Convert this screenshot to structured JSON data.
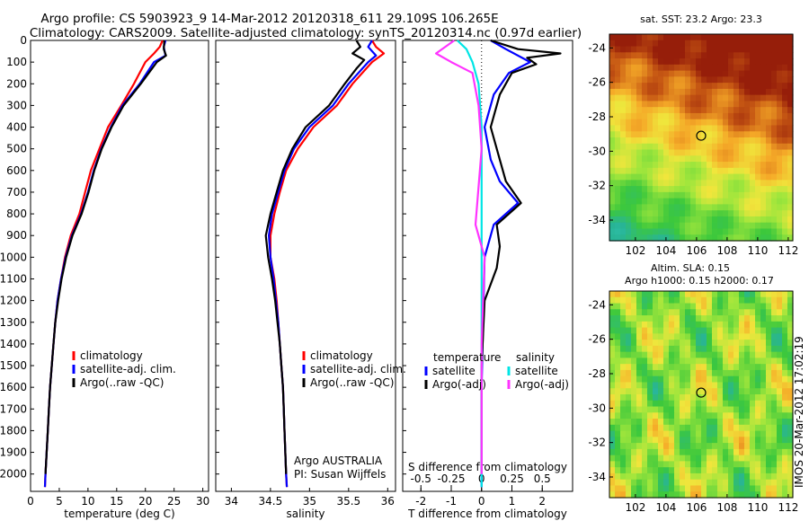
{
  "header": {
    "line1": "Argo profile: CS 5903923_9 14-Mar-2012 20120318_611 29.109S 106.265E",
    "line2": "Climatology: CARS2009. Satellite-adjusted climatology: synTS_20120314.nc (0.97d earlier)"
  },
  "colors": {
    "climatology": "#ff0000",
    "satellite": "#0000ff",
    "argo": "#000000",
    "sal_satellite": "#00e5e5",
    "sal_argo": "#ff33ff"
  },
  "side_text": "IMOS 20-Mar-2012 17:02:19",
  "chart_data": [
    {
      "type": "line",
      "xlabel": "temperature (deg C)",
      "xlim": [
        0,
        31
      ],
      "ylim": [
        2080,
        0
      ],
      "xticks": [
        0,
        5,
        10,
        15,
        20,
        25,
        30
      ],
      "yticks": [
        0,
        100,
        200,
        300,
        400,
        500,
        600,
        700,
        800,
        900,
        1000,
        1100,
        1200,
        1300,
        1400,
        1500,
        1600,
        1700,
        1800,
        1900,
        2000
      ],
      "legend": [
        "climatology",
        "satellite-adj. clim.",
        "Argo(..raw -QC)"
      ],
      "series": [
        {
          "name": "climatology",
          "color": "#ff0000",
          "points": [
            [
              23,
              0
            ],
            [
              22.5,
              30
            ],
            [
              21.5,
              60
            ],
            [
              20,
              100
            ],
            [
              18,
              200
            ],
            [
              15.8,
              300
            ],
            [
              13.5,
              400
            ],
            [
              12,
              500
            ],
            [
              10.5,
              600
            ],
            [
              9.5,
              700
            ],
            [
              8.5,
              800
            ],
            [
              7,
              900
            ],
            [
              6,
              1000
            ],
            [
              5.3,
              1100
            ],
            [
              4.7,
              1200
            ],
            [
              4.3,
              1300
            ],
            [
              4,
              1400
            ],
            [
              3.7,
              1500
            ],
            [
              3.4,
              1600
            ],
            [
              3.2,
              1700
            ],
            [
              3,
              1800
            ],
            [
              2.8,
              1900
            ],
            [
              2.6,
              2000
            ],
            [
              2.5,
              2060
            ]
          ]
        },
        {
          "name": "satellite-adj. clim.",
          "color": "#0000ff",
          "points": [
            [
              23.5,
              0
            ],
            [
              23.2,
              30
            ],
            [
              23.5,
              70
            ],
            [
              21.5,
              100
            ],
            [
              19,
              200
            ],
            [
              16,
              300
            ],
            [
              14,
              400
            ],
            [
              12.3,
              500
            ],
            [
              11,
              600
            ],
            [
              10,
              700
            ],
            [
              8.8,
              800
            ],
            [
              7.2,
              900
            ],
            [
              6.1,
              1000
            ],
            [
              5.3,
              1100
            ],
            [
              4.7,
              1200
            ],
            [
              4.3,
              1300
            ],
            [
              4,
              1400
            ],
            [
              3.7,
              1500
            ],
            [
              3.4,
              1600
            ],
            [
              3.2,
              1700
            ],
            [
              3,
              1800
            ],
            [
              2.8,
              1900
            ],
            [
              2.6,
              2000
            ],
            [
              2.5,
              2060
            ]
          ]
        },
        {
          "name": "Argo(..raw -QC)",
          "color": "#000000",
          "points": [
            [
              23.3,
              0
            ],
            [
              23.2,
              40
            ],
            [
              23.6,
              70
            ],
            [
              22,
              100
            ],
            [
              19.2,
              200
            ],
            [
              16.2,
              300
            ],
            [
              14.1,
              400
            ],
            [
              12.4,
              500
            ],
            [
              11.1,
              600
            ],
            [
              10.1,
              700
            ],
            [
              8.9,
              800
            ],
            [
              7.3,
              900
            ],
            [
              6.2,
              1000
            ],
            [
              5.4,
              1100
            ],
            [
              4.8,
              1200
            ],
            [
              4.3,
              1300
            ],
            [
              4,
              1400
            ],
            [
              3.7,
              1500
            ],
            [
              3.4,
              1600
            ],
            [
              3.2,
              1700
            ],
            [
              3,
              1800
            ],
            [
              2.8,
              1900
            ],
            [
              2.6,
              2000
            ]
          ]
        }
      ]
    },
    {
      "type": "line",
      "xlabel": "salinity",
      "xlim": [
        33.8,
        36.1
      ],
      "ylim": [
        2080,
        0
      ],
      "xticks": [
        34,
        34.5,
        35,
        35.5,
        36
      ],
      "legend": [
        "climatology",
        "satellite-adj. clim.",
        "Argo(..raw -QC)"
      ],
      "annotation": [
        "Argo AUSTRALIA",
        "PI: Susan Wijffels"
      ],
      "series": [
        {
          "name": "climatology",
          "color": "#ff0000",
          "points": [
            [
              35.8,
              0
            ],
            [
              35.85,
              30
            ],
            [
              35.95,
              60
            ],
            [
              35.8,
              100
            ],
            [
              35.55,
              200
            ],
            [
              35.35,
              300
            ],
            [
              35.05,
              400
            ],
            [
              34.85,
              500
            ],
            [
              34.7,
              600
            ],
            [
              34.62,
              700
            ],
            [
              34.55,
              800
            ],
            [
              34.5,
              900
            ],
            [
              34.5,
              1000
            ],
            [
              34.55,
              1100
            ],
            [
              34.58,
              1200
            ],
            [
              34.6,
              1300
            ],
            [
              34.62,
              1400
            ],
            [
              34.64,
              1500
            ],
            [
              34.66,
              1600
            ],
            [
              34.67,
              1700
            ],
            [
              34.68,
              1800
            ],
            [
              34.69,
              1900
            ],
            [
              34.7,
              2000
            ],
            [
              34.71,
              2060
            ]
          ]
        },
        {
          "name": "satellite-adj. clim.",
          "color": "#0000ff",
          "points": [
            [
              35.8,
              0
            ],
            [
              35.75,
              30
            ],
            [
              35.85,
              70
            ],
            [
              35.75,
              100
            ],
            [
              35.5,
              200
            ],
            [
              35.3,
              300
            ],
            [
              35,
              400
            ],
            [
              34.8,
              500
            ],
            [
              34.68,
              600
            ],
            [
              34.6,
              700
            ],
            [
              34.52,
              800
            ],
            [
              34.48,
              900
            ],
            [
              34.5,
              1000
            ],
            [
              34.54,
              1100
            ],
            [
              34.57,
              1200
            ],
            [
              34.6,
              1300
            ],
            [
              34.62,
              1400
            ],
            [
              34.64,
              1500
            ],
            [
              34.66,
              1600
            ],
            [
              34.67,
              1700
            ],
            [
              34.68,
              1800
            ],
            [
              34.69,
              1900
            ],
            [
              34.7,
              2000
            ],
            [
              34.71,
              2060
            ]
          ]
        },
        {
          "name": "Argo(..raw -QC)",
          "color": "#000000",
          "points": [
            [
              35.6,
              0
            ],
            [
              35.65,
              30
            ],
            [
              35.55,
              60
            ],
            [
              35.7,
              90
            ],
            [
              35.6,
              130
            ],
            [
              35.45,
              200
            ],
            [
              35.25,
              300
            ],
            [
              34.95,
              400
            ],
            [
              34.78,
              500
            ],
            [
              34.66,
              600
            ],
            [
              34.58,
              700
            ],
            [
              34.5,
              800
            ],
            [
              34.44,
              900
            ],
            [
              34.47,
              1000
            ],
            [
              34.52,
              1100
            ],
            [
              34.56,
              1200
            ],
            [
              34.59,
              1300
            ],
            [
              34.62,
              1400
            ],
            [
              34.64,
              1500
            ],
            [
              34.66,
              1600
            ],
            [
              34.67,
              1700
            ],
            [
              34.68,
              1800
            ],
            [
              34.69,
              1900
            ],
            [
              34.7,
              2000
            ]
          ]
        }
      ]
    },
    {
      "type": "line",
      "xlabel": "T difference from climatology",
      "xlabel2": "S difference from climatology",
      "xlim": [
        -2.6,
        3
      ],
      "ylim": [
        2080,
        0
      ],
      "xticks": [
        -2,
        -1,
        0,
        1,
        2
      ],
      "xticks2": [
        -0.5,
        -0.25,
        0,
        0.25,
        0.5
      ],
      "legend_groups": [
        {
          "title": "temperature",
          "items": [
            "satellite",
            "Argo(-adj)"
          ]
        },
        {
          "title": "salinity",
          "items": [
            "satellite",
            "Argo(-adj)"
          ]
        }
      ],
      "series": [
        {
          "name": "temperature satellite",
          "color": "#0000ff",
          "points": [
            [
              0.3,
              0
            ],
            [
              0.8,
              40
            ],
            [
              1.6,
              100
            ],
            [
              0.9,
              150
            ],
            [
              0.4,
              250
            ],
            [
              0.1,
              400
            ],
            [
              0.3,
              550
            ],
            [
              0.6,
              650
            ],
            [
              1.2,
              750
            ],
            [
              0.4,
              850
            ],
            [
              0.1,
              1000
            ],
            [
              0.05,
              1300
            ],
            [
              0,
              1600
            ],
            [
              0,
              2060
            ]
          ]
        },
        {
          "name": "temperature Argo(-adj)",
          "color": "#000000",
          "points": [
            [
              0.3,
              0
            ],
            [
              1.2,
              40
            ],
            [
              2.6,
              60
            ],
            [
              1.5,
              80
            ],
            [
              1.8,
              110
            ],
            [
              1.0,
              150
            ],
            [
              0.6,
              250
            ],
            [
              0.3,
              400
            ],
            [
              0.6,
              550
            ],
            [
              0.8,
              650
            ],
            [
              1.3,
              750
            ],
            [
              0.5,
              850
            ],
            [
              0.6,
              950
            ],
            [
              0.5,
              1050
            ],
            [
              0.1,
              1200
            ],
            [
              0,
              1500
            ],
            [
              0,
              2000
            ]
          ]
        },
        {
          "name": "salinity satellite",
          "color": "#00e5e5",
          "points": [
            [
              -0.8,
              0
            ],
            [
              -0.5,
              40
            ],
            [
              -0.3,
              100
            ],
            [
              -0.1,
              200
            ],
            [
              0,
              400
            ],
            [
              0,
              800
            ],
            [
              0,
              1200
            ],
            [
              0,
              1600
            ],
            [
              0,
              2060
            ]
          ]
        },
        {
          "name": "salinity Argo(-adj)",
          "color": "#ff33ff",
          "points": [
            [
              -0.9,
              0
            ],
            [
              -1.5,
              60
            ],
            [
              -1.0,
              100
            ],
            [
              -0.3,
              150
            ],
            [
              -0.1,
              300
            ],
            [
              0,
              500
            ],
            [
              -0.2,
              850
            ],
            [
              0.1,
              1000
            ],
            [
              0,
              1400
            ],
            [
              0,
              2000
            ]
          ]
        }
      ]
    },
    {
      "type": "heatmap",
      "title": "sat. SST: 23.2  Argo: 23.3",
      "xticks": [
        102,
        104,
        106,
        108,
        110,
        112
      ],
      "yticks": [
        -24,
        -26,
        -28,
        -30,
        -32,
        -34
      ],
      "xlim": [
        100.3,
        112.3
      ],
      "ylim": [
        -35.2,
        -23.2
      ],
      "marker": [
        106.3,
        -29.1
      ]
    },
    {
      "type": "heatmap",
      "title": "Altim. SLA: 0.15",
      "subtitle": "Argo h1000: 0.15 h2000: 0.17",
      "xticks": [
        102,
        104,
        106,
        108,
        110,
        112
      ],
      "yticks": [
        -24,
        -26,
        -28,
        -30,
        -32,
        -34
      ],
      "xlim": [
        100.3,
        112.3
      ],
      "ylim": [
        -35.2,
        -23.2
      ],
      "marker": [
        106.3,
        -29.1
      ]
    }
  ]
}
